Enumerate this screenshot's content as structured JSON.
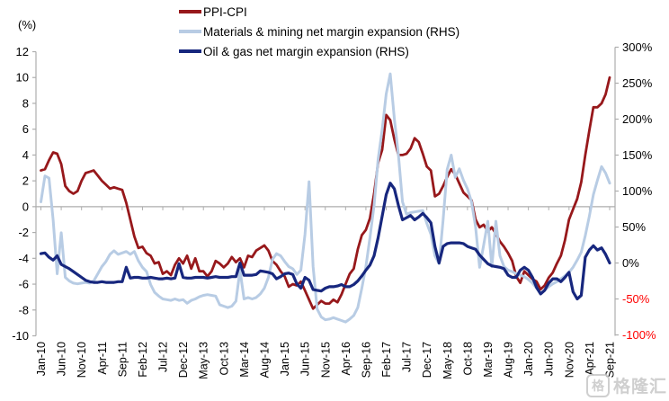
{
  "watermark": {
    "icon_char": "格",
    "text": "格隆汇"
  },
  "chart_data": {
    "type": "line",
    "title": "",
    "x_start": "Jan-10",
    "x_end": "Sep-21",
    "x_frequency": "monthly",
    "n_points": 141,
    "grid": "zero-line-only",
    "legend_position": "top",
    "x_tick_every_months": 5,
    "x_tick_labels": [
      "Jan-10",
      "Jun-10",
      "Nov-10",
      "Apr-11",
      "Sep-11",
      "Feb-12",
      "Jul-12",
      "Dec-12",
      "May-13",
      "Oct-13",
      "Mar-14",
      "Aug-14",
      "Jan-15",
      "Jun-15",
      "Nov-15",
      "Apr-16",
      "Sep-16",
      "Feb-17",
      "Jul-17",
      "Dec-17",
      "May-18",
      "Oct-18",
      "Mar-19",
      "Aug-19",
      "Jan-20",
      "Jun-20",
      "Nov-20",
      "Apr-21",
      "Sep-21"
    ],
    "left_axis": {
      "unit_label": "(%)",
      "min": -10,
      "max": 12,
      "step": 2,
      "ticks": [
        {
          "v": 12,
          "label": "12"
        },
        {
          "v": 10,
          "label": "10"
        },
        {
          "v": 8,
          "label": "8"
        },
        {
          "v": 6,
          "label": "6"
        },
        {
          "v": 4,
          "label": "4"
        },
        {
          "v": 2,
          "label": "2"
        },
        {
          "v": 0,
          "label": "0"
        },
        {
          "v": -2,
          "label": "-2"
        },
        {
          "v": -4,
          "label": "-4"
        },
        {
          "v": -6,
          "label": "-6"
        },
        {
          "v": -8,
          "label": "-8"
        },
        {
          "v": -10,
          "label": "-10"
        }
      ],
      "label_color": "#000000"
    },
    "right_axis": {
      "min": -100,
      "max": 300,
      "step": 50,
      "ticks": [
        {
          "v": 300,
          "label": "300%",
          "color": "#000000"
        },
        {
          "v": 250,
          "label": "250%",
          "color": "#000000"
        },
        {
          "v": 200,
          "label": "200%",
          "color": "#000000"
        },
        {
          "v": 150,
          "label": "150%",
          "color": "#000000"
        },
        {
          "v": 100,
          "label": "100%",
          "color": "#000000"
        },
        {
          "v": 50,
          "label": "50%",
          "color": "#000000"
        },
        {
          "v": 0,
          "label": "0%",
          "color": "#000000"
        },
        {
          "v": -50,
          "label": "-50%",
          "color": "#ff0000"
        },
        {
          "v": -100,
          "label": "-100%",
          "color": "#ff0000"
        }
      ]
    },
    "axis_line_color": "#adadad",
    "series": [
      {
        "name": "PPI-CPI",
        "axis": "left",
        "color": "#97181b",
        "width": 2.8,
        "values": [
          2.8,
          2.9,
          3.6,
          4.2,
          4.1,
          3.3,
          1.6,
          1.2,
          1.0,
          1.2,
          2.0,
          2.6,
          2.7,
          2.8,
          2.4,
          2.0,
          1.7,
          1.4,
          1.5,
          1.4,
          1.3,
          0.3,
          -1.0,
          -2.3,
          -3.2,
          -3.1,
          -3.6,
          -3.8,
          -4.4,
          -4.3,
          -5.2,
          -5.0,
          -5.3,
          -4.5,
          -4.0,
          -4.4,
          -3.8,
          -4.8,
          -4.0,
          -5.0,
          -5.0,
          -5.4,
          -5.0,
          -4.2,
          -4.4,
          -4.7,
          -4.4,
          -3.9,
          -4.3,
          -4.0,
          -4.7,
          -3.8,
          -3.9,
          -3.4,
          -3.2,
          -3.0,
          -3.4,
          -4.2,
          -4.5,
          -5.0,
          -5.4,
          -6.2,
          -6.0,
          -6.1,
          -5.8,
          -6.5,
          -7.2,
          -7.9,
          -7.6,
          -7.3,
          -7.5,
          -7.5,
          -7.2,
          -7.4,
          -6.8,
          -6.0,
          -5.2,
          -4.8,
          -3.3,
          -2.2,
          -1.8,
          -0.9,
          1.0,
          3.4,
          4.4,
          7.1,
          6.7,
          5.2,
          4.0,
          4.0,
          4.1,
          4.5,
          5.3,
          5.0,
          4.1,
          3.1,
          2.8,
          0.8,
          1.0,
          1.6,
          2.3,
          2.9,
          2.5,
          1.8,
          1.1,
          0.8,
          0.5,
          -1.0,
          -1.6,
          -1.4,
          -1.9,
          -1.6,
          -2.1,
          -2.7,
          -3.1,
          -3.6,
          -4.2,
          -5.4,
          -5.9,
          -5.0,
          -5.3,
          -5.6,
          -5.8,
          -6.4,
          -6.1,
          -5.5,
          -5.1,
          -4.4,
          -3.8,
          -2.6,
          -1.0,
          -0.2,
          0.6,
          1.9,
          4.0,
          5.9,
          7.7,
          7.7,
          8.0,
          8.7,
          10.0
        ]
      },
      {
        "name": "Materials & mining net margin expansion (RHS)",
        "axis": "right",
        "color": "#b8cce4",
        "width": 3,
        "values": [
          85,
          121,
          118,
          60,
          -15,
          42,
          -20,
          -25,
          -28,
          -29,
          -28,
          -27,
          -28,
          -25,
          -15,
          -5,
          2,
          12,
          17,
          12,
          14,
          16,
          12,
          16,
          3,
          -6,
          -12,
          -30,
          -41,
          -46,
          -50,
          -51,
          -52,
          -50,
          -52,
          -51,
          -56,
          -52,
          -50,
          -47,
          -45,
          -44,
          -45,
          -46,
          -58,
          -60,
          -62,
          -60,
          -53,
          -10,
          -50,
          -48,
          -50,
          -48,
          -43,
          -35,
          -20,
          5,
          13,
          10,
          2,
          -5,
          -8,
          -16,
          -10,
          40,
          113,
          -5,
          -64,
          -75,
          -79,
          -78,
          -76,
          -78,
          -80,
          -82,
          -78,
          -73,
          -62,
          -35,
          -5,
          35,
          80,
          144,
          185,
          235,
          263,
          200,
          150,
          85,
          68,
          70,
          71,
          72,
          73,
          55,
          40,
          10,
          -1,
          60,
          130,
          150,
          119,
          131,
          115,
          103,
          85,
          50,
          -6,
          25,
          58,
          -5,
          58,
          10,
          -5,
          -10,
          -12,
          -15,
          -17,
          -19,
          -23,
          -28,
          -35,
          -42,
          -38,
          -33,
          -29,
          -26,
          -22,
          -18,
          -13,
          -6,
          4,
          15,
          38,
          65,
          95,
          115,
          134,
          125,
          111
        ]
      },
      {
        "name": "Oil & gas net margin expansion (RHS)",
        "axis": "right",
        "color": "#17277e",
        "width": 3.2,
        "values": [
          13,
          14,
          8,
          4,
          10,
          -2,
          -5,
          -8,
          -12,
          -16,
          -20,
          -24,
          -26,
          -27,
          -27,
          -26,
          -27,
          -27,
          -27,
          -26,
          -26,
          -6,
          -21,
          -20,
          -20,
          -21,
          -21,
          -20,
          -21,
          -22,
          -22,
          -21,
          -22,
          -21,
          -1,
          -20,
          -21,
          -21,
          -20,
          -20,
          -20,
          -21,
          -20,
          -19,
          -20,
          -20,
          -20,
          -19,
          -19,
          0,
          -17,
          -17,
          -17,
          -16,
          -11,
          -12,
          -13,
          -15,
          -22,
          -19,
          -15,
          -14,
          -16,
          -29,
          -35,
          -20,
          -24,
          -37,
          -38,
          -39,
          -35,
          -33,
          -33,
          -32,
          -30,
          -33,
          -33,
          -30,
          -25,
          -18,
          -10,
          -3,
          10,
          35,
          65,
          95,
          111,
          103,
          80,
          60,
          63,
          66,
          60,
          64,
          69,
          63,
          56,
          23,
          0,
          23,
          27,
          28,
          28,
          28,
          27,
          23,
          21,
          19,
          11,
          5,
          -1,
          -4,
          -5,
          -6,
          -8,
          -17,
          -20,
          -20,
          -10,
          -6,
          -10,
          -20,
          -34,
          -43,
          -38,
          -28,
          -22,
          -22,
          -26,
          -20,
          -13,
          -40,
          -50,
          -45,
          8,
          18,
          24,
          18,
          21,
          12,
          0
        ]
      }
    ]
  }
}
